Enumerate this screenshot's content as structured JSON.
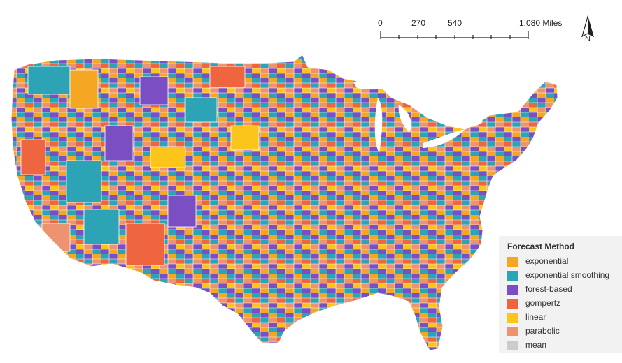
{
  "scalebar": {
    "labels": [
      "0",
      "270",
      "540",
      "1,080 Miles"
    ]
  },
  "north_arrow": {
    "label": "N",
    "icon": "north-arrow-icon"
  },
  "legend": {
    "title": "Forecast Method",
    "items": [
      {
        "label": "exponential",
        "color": "#F5A623"
      },
      {
        "label": "exponential smoothing",
        "color": "#2CA4B5"
      },
      {
        "label": "forest-based",
        "color": "#7A4FC4"
      },
      {
        "label": "gompertz",
        "color": "#EE6540"
      },
      {
        "label": "linear",
        "color": "#FBC51B"
      },
      {
        "label": "parabolic",
        "color": "#EE9370"
      },
      {
        "label": "mean",
        "color": "#CCCCCC"
      }
    ]
  }
}
